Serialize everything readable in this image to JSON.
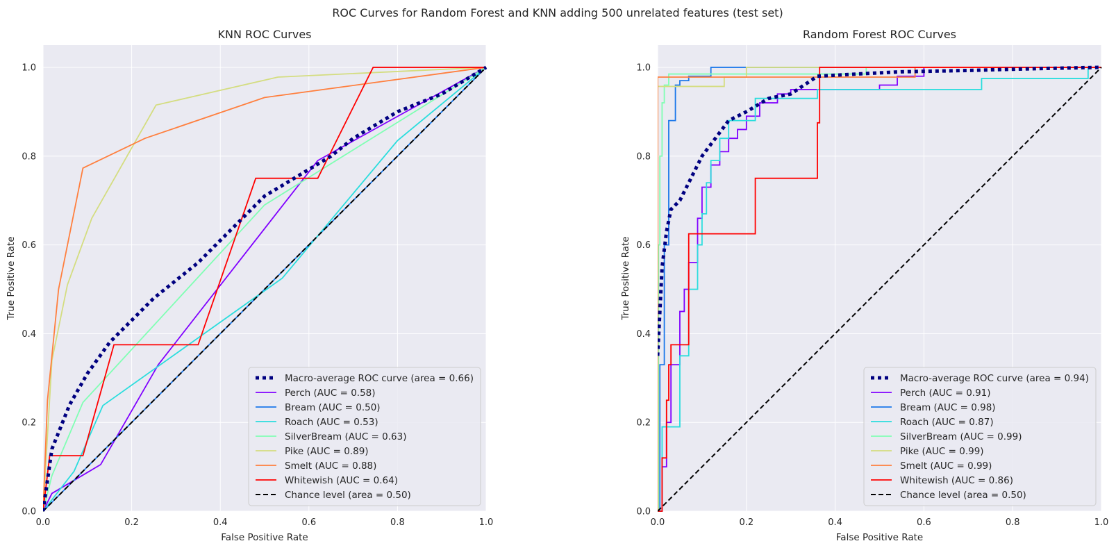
{
  "suptitle": "ROC Curves for Random Forest and KNN adding 500 unrelated features (test set)",
  "colors": {
    "macro": "#000080",
    "Perch": "#8000ff",
    "Bream": "#1c78ea",
    "Roach": "#2adddd",
    "SilverBream": "#80ffb4",
    "Pike": "#d4dd80",
    "Smelt": "#ff7f3e",
    "Whitewish": "#ff0000",
    "chance": "#000000",
    "axes_bg": "#eaeaf2",
    "grid": "#ffffff"
  },
  "chart_data": [
    {
      "type": "line",
      "title": "KNN ROC Curves",
      "xlabel": "False Positive Rate",
      "ylabel": "True Positive Rate",
      "xlim": [
        0,
        1
      ],
      "ylim": [
        0,
        1.05
      ],
      "xticks": [
        "0.0",
        "0.2",
        "0.4",
        "0.6",
        "0.8",
        "1.0"
      ],
      "yticks": [
        "0.0",
        "0.2",
        "0.4",
        "0.6",
        "0.8",
        "1.0"
      ],
      "grid": true,
      "legend_position": "lower-right",
      "series": [
        {
          "key": "macro",
          "name": "Macro-average ROC curve (area = 0.66)",
          "style": "dotted",
          "x": [
            0,
            0.02,
            0.06,
            0.1,
            0.15,
            0.2,
            0.25,
            0.3,
            0.35,
            0.4,
            0.45,
            0.5,
            0.55,
            0.6,
            0.65,
            0.7,
            0.75,
            0.8,
            0.85,
            0.9,
            0.95,
            1.0
          ],
          "y": [
            0,
            0.14,
            0.24,
            0.31,
            0.38,
            0.43,
            0.48,
            0.52,
            0.56,
            0.61,
            0.66,
            0.71,
            0.74,
            0.77,
            0.8,
            0.84,
            0.87,
            0.9,
            0.92,
            0.94,
            0.97,
            1.0
          ]
        },
        {
          "key": "Perch",
          "name": "Perch (AUC = 0.58)",
          "style": "solid",
          "x": [
            0,
            0.02,
            0.13,
            0.26,
            0.62,
            1.0
          ],
          "y": [
            0,
            0.04,
            0.105,
            0.33,
            0.79,
            1.0
          ]
        },
        {
          "key": "Bream",
          "name": "Bream (AUC = 0.50)",
          "style": "solid",
          "x": [
            0,
            1.0
          ],
          "y": [
            0,
            1.0
          ]
        },
        {
          "key": "Roach",
          "name": "Roach (AUC = 0.53)",
          "style": "solid",
          "x": [
            0,
            0.07,
            0.135,
            0.54,
            0.8,
            1.0
          ],
          "y": [
            0,
            0.09,
            0.238,
            0.525,
            0.835,
            1.0
          ]
        },
        {
          "key": "SilverBream",
          "name": "SilverBream (AUC = 0.63)",
          "style": "solid",
          "x": [
            0,
            0.02,
            0.09,
            0.5,
            1.0
          ],
          "y": [
            0,
            0.08,
            0.245,
            0.69,
            1.0
          ]
        },
        {
          "key": "Pike",
          "name": "Pike (AUC = 0.89)",
          "style": "solid",
          "x": [
            0,
            0.02,
            0.055,
            0.11,
            0.255,
            0.53,
            1.0
          ],
          "y": [
            0,
            0.34,
            0.51,
            0.66,
            0.915,
            0.978,
            1.0
          ]
        },
        {
          "key": "Smelt",
          "name": "Smelt (AUC = 0.88)",
          "style": "solid",
          "x": [
            0,
            0.01,
            0.035,
            0.09,
            0.23,
            0.5,
            1.0
          ],
          "y": [
            0,
            0.25,
            0.5,
            0.773,
            0.84,
            0.932,
            1.0
          ]
        },
        {
          "key": "Whitewish",
          "name": "Whitewish (AUC = 0.64)",
          "style": "solid",
          "x": [
            0,
            0.015,
            0.015,
            0.09,
            0.16,
            0.16,
            0.35,
            0.48,
            0.48,
            0.62,
            0.745,
            0.745,
            1.0
          ],
          "y": [
            0,
            0.125,
            0.125,
            0.125,
            0.375,
            0.375,
            0.375,
            0.75,
            0.75,
            0.75,
            1.0,
            1.0,
            1.0
          ]
        },
        {
          "key": "chance",
          "name": "Chance level (area = 0.50)",
          "style": "dashed",
          "x": [
            0,
            1
          ],
          "y": [
            0,
            1
          ]
        }
      ]
    },
    {
      "type": "line",
      "title": "Random Forest ROC Curves",
      "xlabel": "False Positive Rate",
      "ylabel": "True Positive Rate",
      "xlim": [
        0,
        1
      ],
      "ylim": [
        0,
        1.05
      ],
      "xticks": [
        "0.0",
        "0.2",
        "0.4",
        "0.6",
        "0.8",
        "1.0"
      ],
      "yticks": [
        "0.0",
        "0.2",
        "0.4",
        "0.6",
        "0.8",
        "1.0"
      ],
      "grid": true,
      "legend_position": "lower-right",
      "series": [
        {
          "key": "macro",
          "name": "Macro-average ROC curve (area = 0.94)",
          "style": "dotted",
          "x": [
            0,
            0.005,
            0.01,
            0.02,
            0.03,
            0.05,
            0.07,
            0.1,
            0.13,
            0.16,
            0.2,
            0.25,
            0.3,
            0.36,
            0.45,
            0.55,
            0.7,
            0.85,
            1.0
          ],
          "y": [
            0.35,
            0.45,
            0.55,
            0.63,
            0.68,
            0.7,
            0.74,
            0.8,
            0.84,
            0.88,
            0.9,
            0.93,
            0.94,
            0.98,
            0.985,
            0.99,
            0.993,
            0.997,
            1.0
          ]
        },
        {
          "key": "Perch",
          "name": "Perch (AUC = 0.91)",
          "style": "solid",
          "x": [
            0,
            0.01,
            0.01,
            0.02,
            0.02,
            0.03,
            0.03,
            0.05,
            0.05,
            0.06,
            0.06,
            0.07,
            0.07,
            0.09,
            0.09,
            0.1,
            0.1,
            0.12,
            0.12,
            0.14,
            0.14,
            0.16,
            0.16,
            0.18,
            0.18,
            0.2,
            0.2,
            0.23,
            0.23,
            0.27,
            0.27,
            0.3,
            0.3,
            0.5,
            0.5,
            0.54,
            0.54,
            0.6,
            0.6,
            1.0
          ],
          "y": [
            0,
            0,
            0.1,
            0.1,
            0.2,
            0.2,
            0.33,
            0.33,
            0.45,
            0.45,
            0.5,
            0.5,
            0.56,
            0.56,
            0.66,
            0.66,
            0.73,
            0.73,
            0.78,
            0.78,
            0.81,
            0.81,
            0.84,
            0.84,
            0.86,
            0.86,
            0.89,
            0.89,
            0.92,
            0.92,
            0.94,
            0.94,
            0.95,
            0.95,
            0.96,
            0.96,
            0.98,
            0.98,
            1.0,
            1.0
          ]
        },
        {
          "key": "Bream",
          "name": "Bream (AUC = 0.98)",
          "style": "solid",
          "x": [
            0,
            0.005,
            0.005,
            0.015,
            0.015,
            0.025,
            0.025,
            0.04,
            0.04,
            0.05,
            0.05,
            0.07,
            0.07,
            0.12,
            0.12,
            0.2,
            0.2,
            1.0
          ],
          "y": [
            0,
            0,
            0.33,
            0.33,
            0.6,
            0.6,
            0.88,
            0.88,
            0.96,
            0.96,
            0.97,
            0.97,
            0.98,
            0.98,
            1.0,
            1.0,
            1.0,
            1.0
          ]
        },
        {
          "key": "Roach",
          "name": "Roach (AUC = 0.87)",
          "style": "solid",
          "x": [
            0,
            0.01,
            0.01,
            0.02,
            0.02,
            0.05,
            0.05,
            0.07,
            0.07,
            0.09,
            0.09,
            0.1,
            0.1,
            0.11,
            0.11,
            0.12,
            0.12,
            0.14,
            0.14,
            0.16,
            0.16,
            0.22,
            0.22,
            0.36,
            0.36,
            0.73,
            0.73,
            0.97,
            0.97,
            1.0
          ],
          "y": [
            0,
            0,
            0.19,
            0.19,
            0.19,
            0.19,
            0.35,
            0.35,
            0.5,
            0.5,
            0.6,
            0.6,
            0.67,
            0.67,
            0.74,
            0.74,
            0.79,
            0.79,
            0.84,
            0.84,
            0.88,
            0.88,
            0.93,
            0.93,
            0.95,
            0.95,
            0.975,
            0.975,
            1.0,
            1.0
          ]
        },
        {
          "key": "SilverBream",
          "name": "SilverBream (AUC = 0.99)",
          "style": "solid",
          "x": [
            0,
            0.002,
            0.002,
            0.005,
            0.005,
            0.01,
            0.01,
            0.015,
            0.015,
            0.025,
            0.025,
            0.47,
            0.47,
            1.0
          ],
          "y": [
            0,
            0,
            0.6,
            0.6,
            0.8,
            0.8,
            0.92,
            0.92,
            0.96,
            0.96,
            0.985,
            0.985,
            1.0,
            1.0
          ]
        },
        {
          "key": "Pike",
          "name": "Pike (AUC = 0.99)",
          "style": "solid",
          "x": [
            0,
            0,
            0.15,
            0.15,
            0.2,
            0.2,
            1.0
          ],
          "y": [
            0,
            0.957,
            0.957,
            0.978,
            0.978,
            1.0,
            1.0
          ]
        },
        {
          "key": "Smelt",
          "name": "Smelt (AUC = 0.99)",
          "style": "solid",
          "x": [
            0,
            0,
            0.58,
            0.58,
            1.0
          ],
          "y": [
            0,
            0.978,
            0.978,
            1.0,
            1.0
          ]
        },
        {
          "key": "Whitewish",
          "name": "Whitewish (AUC = 0.86)",
          "style": "solid",
          "x": [
            0,
            0.01,
            0.01,
            0.015,
            0.015,
            0.02,
            0.02,
            0.025,
            0.025,
            0.03,
            0.03,
            0.035,
            0.035,
            0.07,
            0.07,
            0.22,
            0.22,
            0.36,
            0.36,
            0.365,
            0.365,
            1.0
          ],
          "y": [
            0,
            0,
            0.12,
            0.12,
            0.12,
            0.12,
            0.25,
            0.25,
            0.33,
            0.33,
            0.375,
            0.375,
            0.375,
            0.375,
            0.625,
            0.625,
            0.75,
            0.75,
            0.875,
            0.875,
            1.0,
            1.0
          ]
        },
        {
          "key": "chance",
          "name": "Chance level (area = 0.50)",
          "style": "dashed",
          "x": [
            0,
            1
          ],
          "y": [
            0,
            1
          ]
        }
      ]
    }
  ]
}
